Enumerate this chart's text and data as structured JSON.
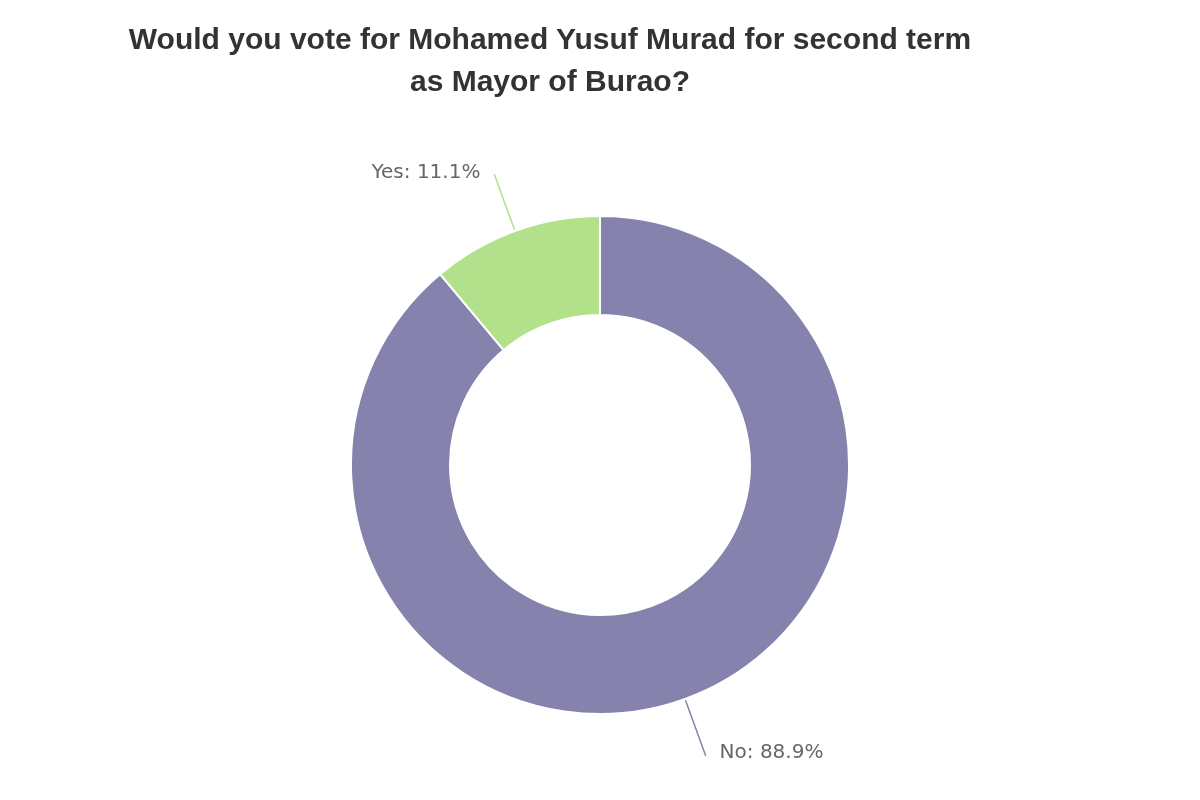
{
  "chart_data": {
    "type": "donut",
    "title": "Would you vote for Mohamed Yusuf Murad for second term as Mayor of Burao?",
    "categories": [
      "No",
      "Yes"
    ],
    "values": [
      88.9,
      11.1
    ],
    "colors": [
      "#8583ad",
      "#b3e08a"
    ],
    "value_labels": [
      "88.9%",
      "11.1%"
    ],
    "legend": false
  }
}
